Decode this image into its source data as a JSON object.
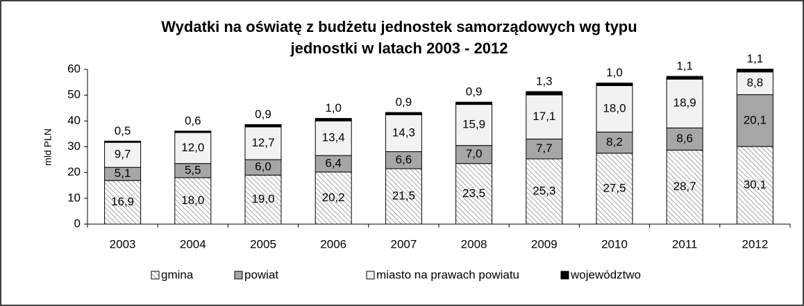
{
  "chart_data": {
    "type": "stacked_bar",
    "title": [
      "Wydatki na oświatę z budżetu jednostek samorządowych wg typu",
      "jednostki w latach 2003 - 2012"
    ],
    "y_label": "mld PLN",
    "categories": [
      "2003",
      "2004",
      "2005",
      "2006",
      "2007",
      "2008",
      "2009",
      "2010",
      "2011",
      "2012"
    ],
    "series": [
      {
        "name": "gmina",
        "color": "#8c8c8c",
        "hatch": true,
        "values": [
          16.9,
          18.0,
          19.0,
          20.2,
          21.5,
          23.5,
          25.3,
          27.5,
          28.7,
          30.1
        ],
        "value_labels": [
          "16,9",
          "18,0",
          "19,0",
          "20,2",
          "21,5",
          "23,5",
          "25,3",
          "27,5",
          "28,7",
          "30,1"
        ]
      },
      {
        "name": "powiat",
        "color": "#a6a6a6",
        "values": [
          5.1,
          5.5,
          6.0,
          6.4,
          6.6,
          7.0,
          7.7,
          8.2,
          8.6,
          20.1
        ],
        "value_labels": [
          "5,1",
          "5,5",
          "6,0",
          "6,4",
          "6,6",
          "7,0",
          "7,7",
          "8,2",
          "8,6",
          "20,1"
        ]
      },
      {
        "name": "miasto na prawach powiatu",
        "color": "#f2f2f2",
        "values": [
          9.7,
          12.0,
          12.7,
          13.4,
          14.3,
          15.9,
          17.1,
          18.0,
          18.9,
          8.8
        ],
        "value_labels": [
          "9,7",
          "12,0",
          "12,7",
          "13,4",
          "14,3",
          "15,9",
          "17,1",
          "18,0",
          "18,9",
          "8,8"
        ]
      },
      {
        "name": "województwo",
        "color": "#000000",
        "values": [
          0.5,
          0.6,
          0.9,
          1.0,
          0.9,
          0.9,
          1.3,
          1.0,
          1.1,
          1.1
        ],
        "value_labels": [
          "0,5",
          "0,6",
          "0,9",
          "1,0",
          "0,9",
          "0,9",
          "1,3",
          "1,0",
          "1,1",
          "1,1"
        ]
      }
    ],
    "ylim": [
      0,
      60
    ],
    "yticks": [
      0,
      10,
      20,
      30,
      40,
      50,
      60
    ],
    "legend": "bottom"
  }
}
